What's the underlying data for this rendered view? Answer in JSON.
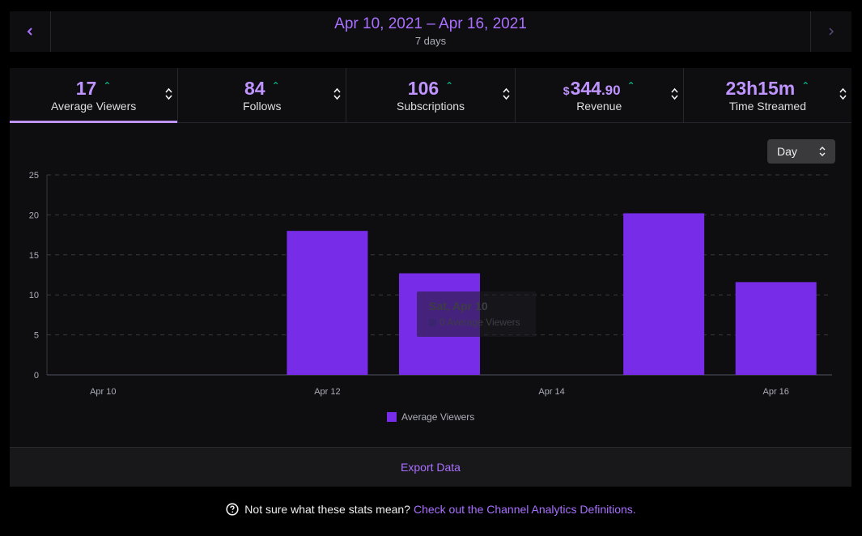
{
  "date_range": {
    "range": "Apr 10, 2021 – Apr 16, 2021",
    "days": "7 days",
    "prev_icon": "chevron-left-icon",
    "next_icon": "chevron-right-icon"
  },
  "stats": [
    {
      "value": "17",
      "label": "Average Viewers",
      "trend": "up",
      "active": true
    },
    {
      "value": "84",
      "label": "Follows",
      "trend": "up"
    },
    {
      "value": "106",
      "label": "Subscriptions",
      "trend": "up"
    },
    {
      "prefix": "$",
      "value": "344",
      "cents": ".90",
      "label": "Revenue",
      "trend": "up"
    },
    {
      "value": "23h15m",
      "label": "Time Streamed",
      "trend": "up"
    }
  ],
  "period_select": {
    "value": "Day"
  },
  "tooltip": {
    "title": "Sat, Apr 10",
    "row": "0 Average Viewers"
  },
  "chart_data": {
    "type": "bar",
    "categories": [
      "Apr 10",
      "Apr 11",
      "Apr 12",
      "Apr 13",
      "Apr 14",
      "Apr 15",
      "Apr 16"
    ],
    "x_tick_labels": [
      "Apr 10",
      "Apr 12",
      "Apr 14",
      "Apr 16"
    ],
    "series": [
      {
        "name": "Average Viewers",
        "values": [
          0,
          0,
          18,
          12.7,
          0,
          20.2,
          11.6
        ]
      }
    ],
    "ylim": [
      0,
      25
    ],
    "y_ticks": [
      0,
      5,
      10,
      15,
      20,
      25
    ],
    "grid": true,
    "legend": "bottom-center"
  },
  "export": {
    "label": "Export Data"
  },
  "help": {
    "text": "Not sure what these stats mean?",
    "link": "Check out the Channel Analytics Definitions."
  },
  "colors": {
    "accent": "#a970ff",
    "bar": "#772ce8",
    "trend_up": "#00d8a0",
    "background": "#0e0e10"
  }
}
